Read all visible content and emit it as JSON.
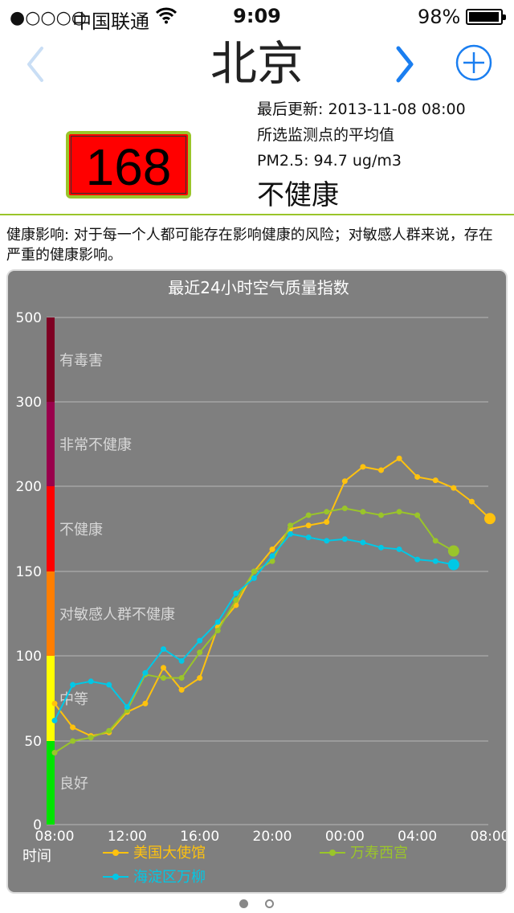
{
  "status_bar": {
    "signal": "●○○○○",
    "carrier": "中国联通",
    "time": "9:09",
    "battery": "98%"
  },
  "nav": {
    "city": "北京",
    "prev_icon": "chevron-left-icon",
    "next_icon": "chevron-right-icon",
    "add_icon": "plus-circle-icon"
  },
  "summary": {
    "aqi": "168",
    "last_update": "最后更新: 2013-11-08 08:00",
    "avg_note": "所选监测点的平均值",
    "pm25": "PM2.5: 94.7 ug/m3",
    "level": "不健康"
  },
  "health_impact": "健康影响: 对于每一个人都可能存在影响健康的风险；对敏感人群来说，存在严重的健康影响。",
  "colors": {
    "accent": "#1a7ef0",
    "divider": "#9ac52a",
    "aqi_bg": "#ff0000",
    "chart_bg": "#7f7f7f"
  },
  "chart_data": {
    "type": "line",
    "title": "最近24小时空气质量指数",
    "ylim": [
      0,
      500
    ],
    "y_ticks": [
      "0",
      "50",
      "100",
      "150",
      "200",
      "300",
      "500"
    ],
    "x_ticks": [
      "08:00",
      "12:00",
      "16:00",
      "20:00",
      "00:00",
      "04:00",
      "08:00"
    ],
    "xlabel": "时间",
    "bands": [
      {
        "label": "良好",
        "from": 0,
        "to": 50,
        "color": "#00e400"
      },
      {
        "label": "中等",
        "from": 50,
        "to": 100,
        "color": "#ffff00"
      },
      {
        "label": "对敏感人群不健康",
        "from": 100,
        "to": 150,
        "color": "#ff7e00"
      },
      {
        "label": "不健康",
        "from": 150,
        "to": 200,
        "color": "#ff0000"
      },
      {
        "label": "非常不健康",
        "from": 200,
        "to": 300,
        "color": "#99004c"
      },
      {
        "label": "有毒害",
        "from": 300,
        "to": 500,
        "color": "#7e0023"
      }
    ],
    "hours": 24,
    "series": [
      {
        "name": "美国大使馆",
        "color": "#ffc20e",
        "values": [
          72,
          58,
          53,
          55,
          67,
          72,
          93,
          80,
          87,
          117,
          130,
          150,
          163,
          175,
          177,
          179,
          206,
          223,
          219,
          233,
          211,
          207,
          199,
          191,
          181
        ]
      },
      {
        "name": "万寿西宫",
        "color": "#9ac52a",
        "values": [
          43,
          50,
          52,
          56,
          68,
          89,
          87,
          87,
          102,
          115,
          133,
          150,
          156,
          177,
          183,
          185,
          187,
          185,
          183,
          185,
          183,
          168,
          162
        ]
      },
      {
        "name": "海淀区万柳",
        "color": "#00c8e6",
        "values": [
          62,
          83,
          85,
          83,
          70,
          90,
          104,
          97,
          109,
          120,
          137,
          146,
          159,
          172,
          170,
          168,
          169,
          167,
          164,
          163,
          157,
          156,
          154
        ]
      }
    ]
  }
}
